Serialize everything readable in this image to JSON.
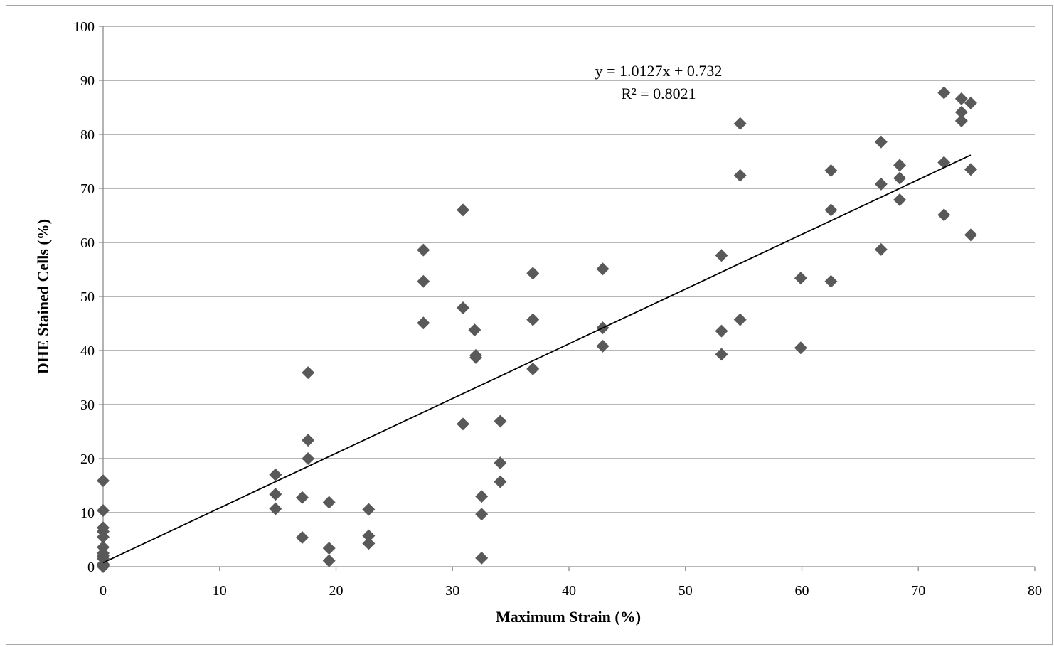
{
  "chart_data": {
    "type": "scatter",
    "title": "",
    "xlabel": "Maximum Strain (%)",
    "ylabel": "DHE Stained Cells (%)",
    "xlim": [
      0,
      80
    ],
    "ylim": [
      0,
      100
    ],
    "xticks": [
      0,
      10,
      20,
      30,
      40,
      50,
      60,
      70,
      80
    ],
    "yticks": [
      0,
      10,
      20,
      30,
      40,
      50,
      60,
      70,
      80,
      90,
      100
    ],
    "grid": "horizontal",
    "marker": "diamond",
    "marker_color": "#595959",
    "trendline": {
      "slope": 1.0127,
      "intercept": 0.732,
      "x_range": [
        0,
        74.5
      ],
      "color": "#000000",
      "equation_label": "y = 1.0127x + 0.732",
      "r2_label": "R² = 0.8021"
    },
    "points": [
      [
        0,
        15.9
      ],
      [
        0,
        10.4
      ],
      [
        0,
        7.2
      ],
      [
        0,
        6.5
      ],
      [
        0,
        5.5
      ],
      [
        0,
        3.6
      ],
      [
        0,
        2.5
      ],
      [
        0,
        2.0
      ],
      [
        0,
        1.5
      ],
      [
        0,
        0.5
      ],
      [
        0,
        0.2
      ],
      [
        0,
        0
      ],
      [
        14.8,
        17.0
      ],
      [
        14.8,
        13.4
      ],
      [
        14.8,
        10.7
      ],
      [
        17.1,
        12.8
      ],
      [
        17.1,
        5.4
      ],
      [
        17.6,
        35.9
      ],
      [
        17.6,
        23.4
      ],
      [
        17.6,
        20.0
      ],
      [
        19.4,
        11.9
      ],
      [
        19.4,
        3.4
      ],
      [
        19.4,
        1.1
      ],
      [
        22.8,
        10.6
      ],
      [
        22.8,
        5.7
      ],
      [
        22.8,
        4.3
      ],
      [
        27.5,
        58.6
      ],
      [
        27.5,
        52.8
      ],
      [
        27.5,
        45.1
      ],
      [
        30.9,
        66.0
      ],
      [
        30.9,
        47.9
      ],
      [
        30.9,
        26.4
      ],
      [
        31.9,
        43.8
      ],
      [
        32.0,
        39.1
      ],
      [
        32.0,
        38.7
      ],
      [
        32.5,
        13.0
      ],
      [
        32.5,
        9.7
      ],
      [
        32.5,
        1.6
      ],
      [
        34.1,
        26.9
      ],
      [
        34.1,
        19.2
      ],
      [
        34.1,
        15.7
      ],
      [
        36.9,
        54.3
      ],
      [
        36.9,
        45.7
      ],
      [
        36.9,
        36.6
      ],
      [
        42.9,
        55.1
      ],
      [
        42.9,
        44.2
      ],
      [
        42.9,
        40.8
      ],
      [
        53.1,
        57.6
      ],
      [
        53.1,
        43.6
      ],
      [
        53.1,
        39.3
      ],
      [
        54.7,
        82.0
      ],
      [
        54.7,
        72.4
      ],
      [
        54.7,
        45.7
      ],
      [
        59.9,
        53.4
      ],
      [
        59.9,
        40.5
      ],
      [
        62.5,
        73.3
      ],
      [
        62.5,
        66.0
      ],
      [
        62.5,
        52.8
      ],
      [
        66.8,
        78.6
      ],
      [
        66.8,
        70.8
      ],
      [
        66.8,
        58.7
      ],
      [
        68.4,
        74.3
      ],
      [
        68.4,
        71.9
      ],
      [
        68.4,
        67.9
      ],
      [
        72.2,
        87.7
      ],
      [
        72.2,
        74.8
      ],
      [
        72.2,
        65.1
      ],
      [
        73.7,
        86.6
      ],
      [
        73.7,
        84.1
      ],
      [
        73.7,
        82.5
      ],
      [
        74.5,
        85.8
      ],
      [
        74.5,
        73.5
      ],
      [
        74.5,
        61.4
      ]
    ]
  }
}
